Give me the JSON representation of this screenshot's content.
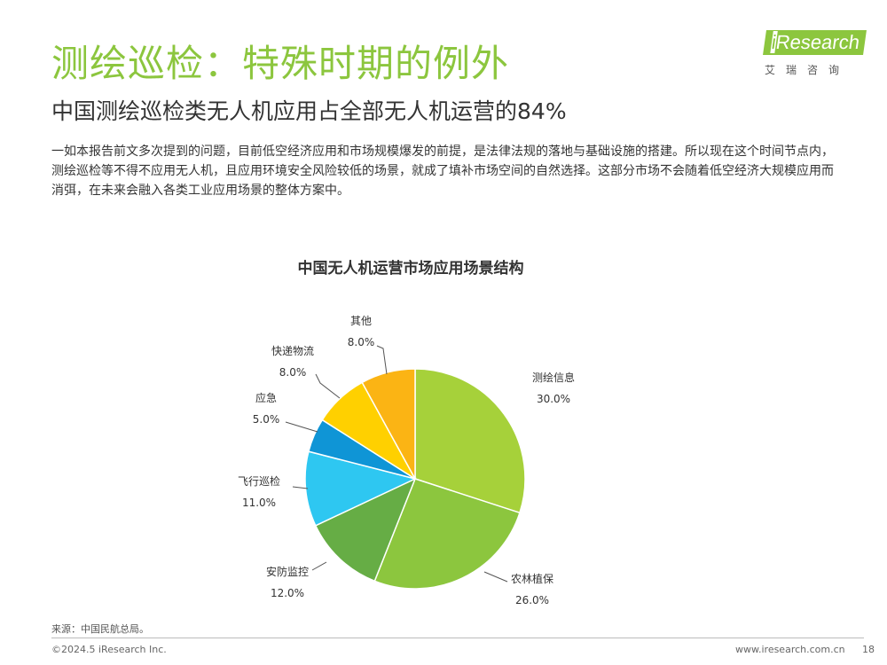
{
  "header": {
    "title": "测绘巡检：特殊时期的例外",
    "subtitle": "中国测绘巡检类无人机应用占全部无人机运营的84%",
    "body": "一如本报告前文多次提到的问题，目前低空经济应用和市场规模爆发的前提，是法律法规的落地与基础设施的搭建。所以现在这个时间节点内，测绘巡检等不得不应用无人机，且应用环境安全风险较低的场景，就成了填补市场空间的自然选择。这部分市场不会随着低空经济大规模应用而消弭，在未来会融入各类工业应用场景的整体方案中。"
  },
  "logo": {
    "word_i": "i",
    "word_rest": "Research",
    "sub": "艾瑞咨询"
  },
  "chart_data": {
    "type": "pie",
    "title": "中国无人机运营市场应用场景结构",
    "slices": [
      {
        "label": "测绘信息",
        "value": 30.0,
        "value_text": "30.0%",
        "color": "#a6d13a"
      },
      {
        "label": "农林植保",
        "value": 26.0,
        "value_text": "26.0%",
        "color": "#8cc63e"
      },
      {
        "label": "安防监控",
        "value": 12.0,
        "value_text": "12.0%",
        "color": "#66ad45"
      },
      {
        "label": "飞行巡检",
        "value": 11.0,
        "value_text": "11.0%",
        "color": "#2ec7f1"
      },
      {
        "label": "应急",
        "value": 5.0,
        "value_text": "5.0%",
        "color": "#0f95d6"
      },
      {
        "label": "快递物流",
        "value": 8.0,
        "value_text": "8.0%",
        "color": "#ffd000"
      },
      {
        "label": "其他",
        "value": 8.0,
        "value_text": "8.0%",
        "color": "#fbb414"
      }
    ]
  },
  "footer": {
    "source": "来源：中国民航总局。",
    "copyright": "©2024.5 iResearch Inc.",
    "site": "www.iresearch.com.cn",
    "page": "18"
  }
}
